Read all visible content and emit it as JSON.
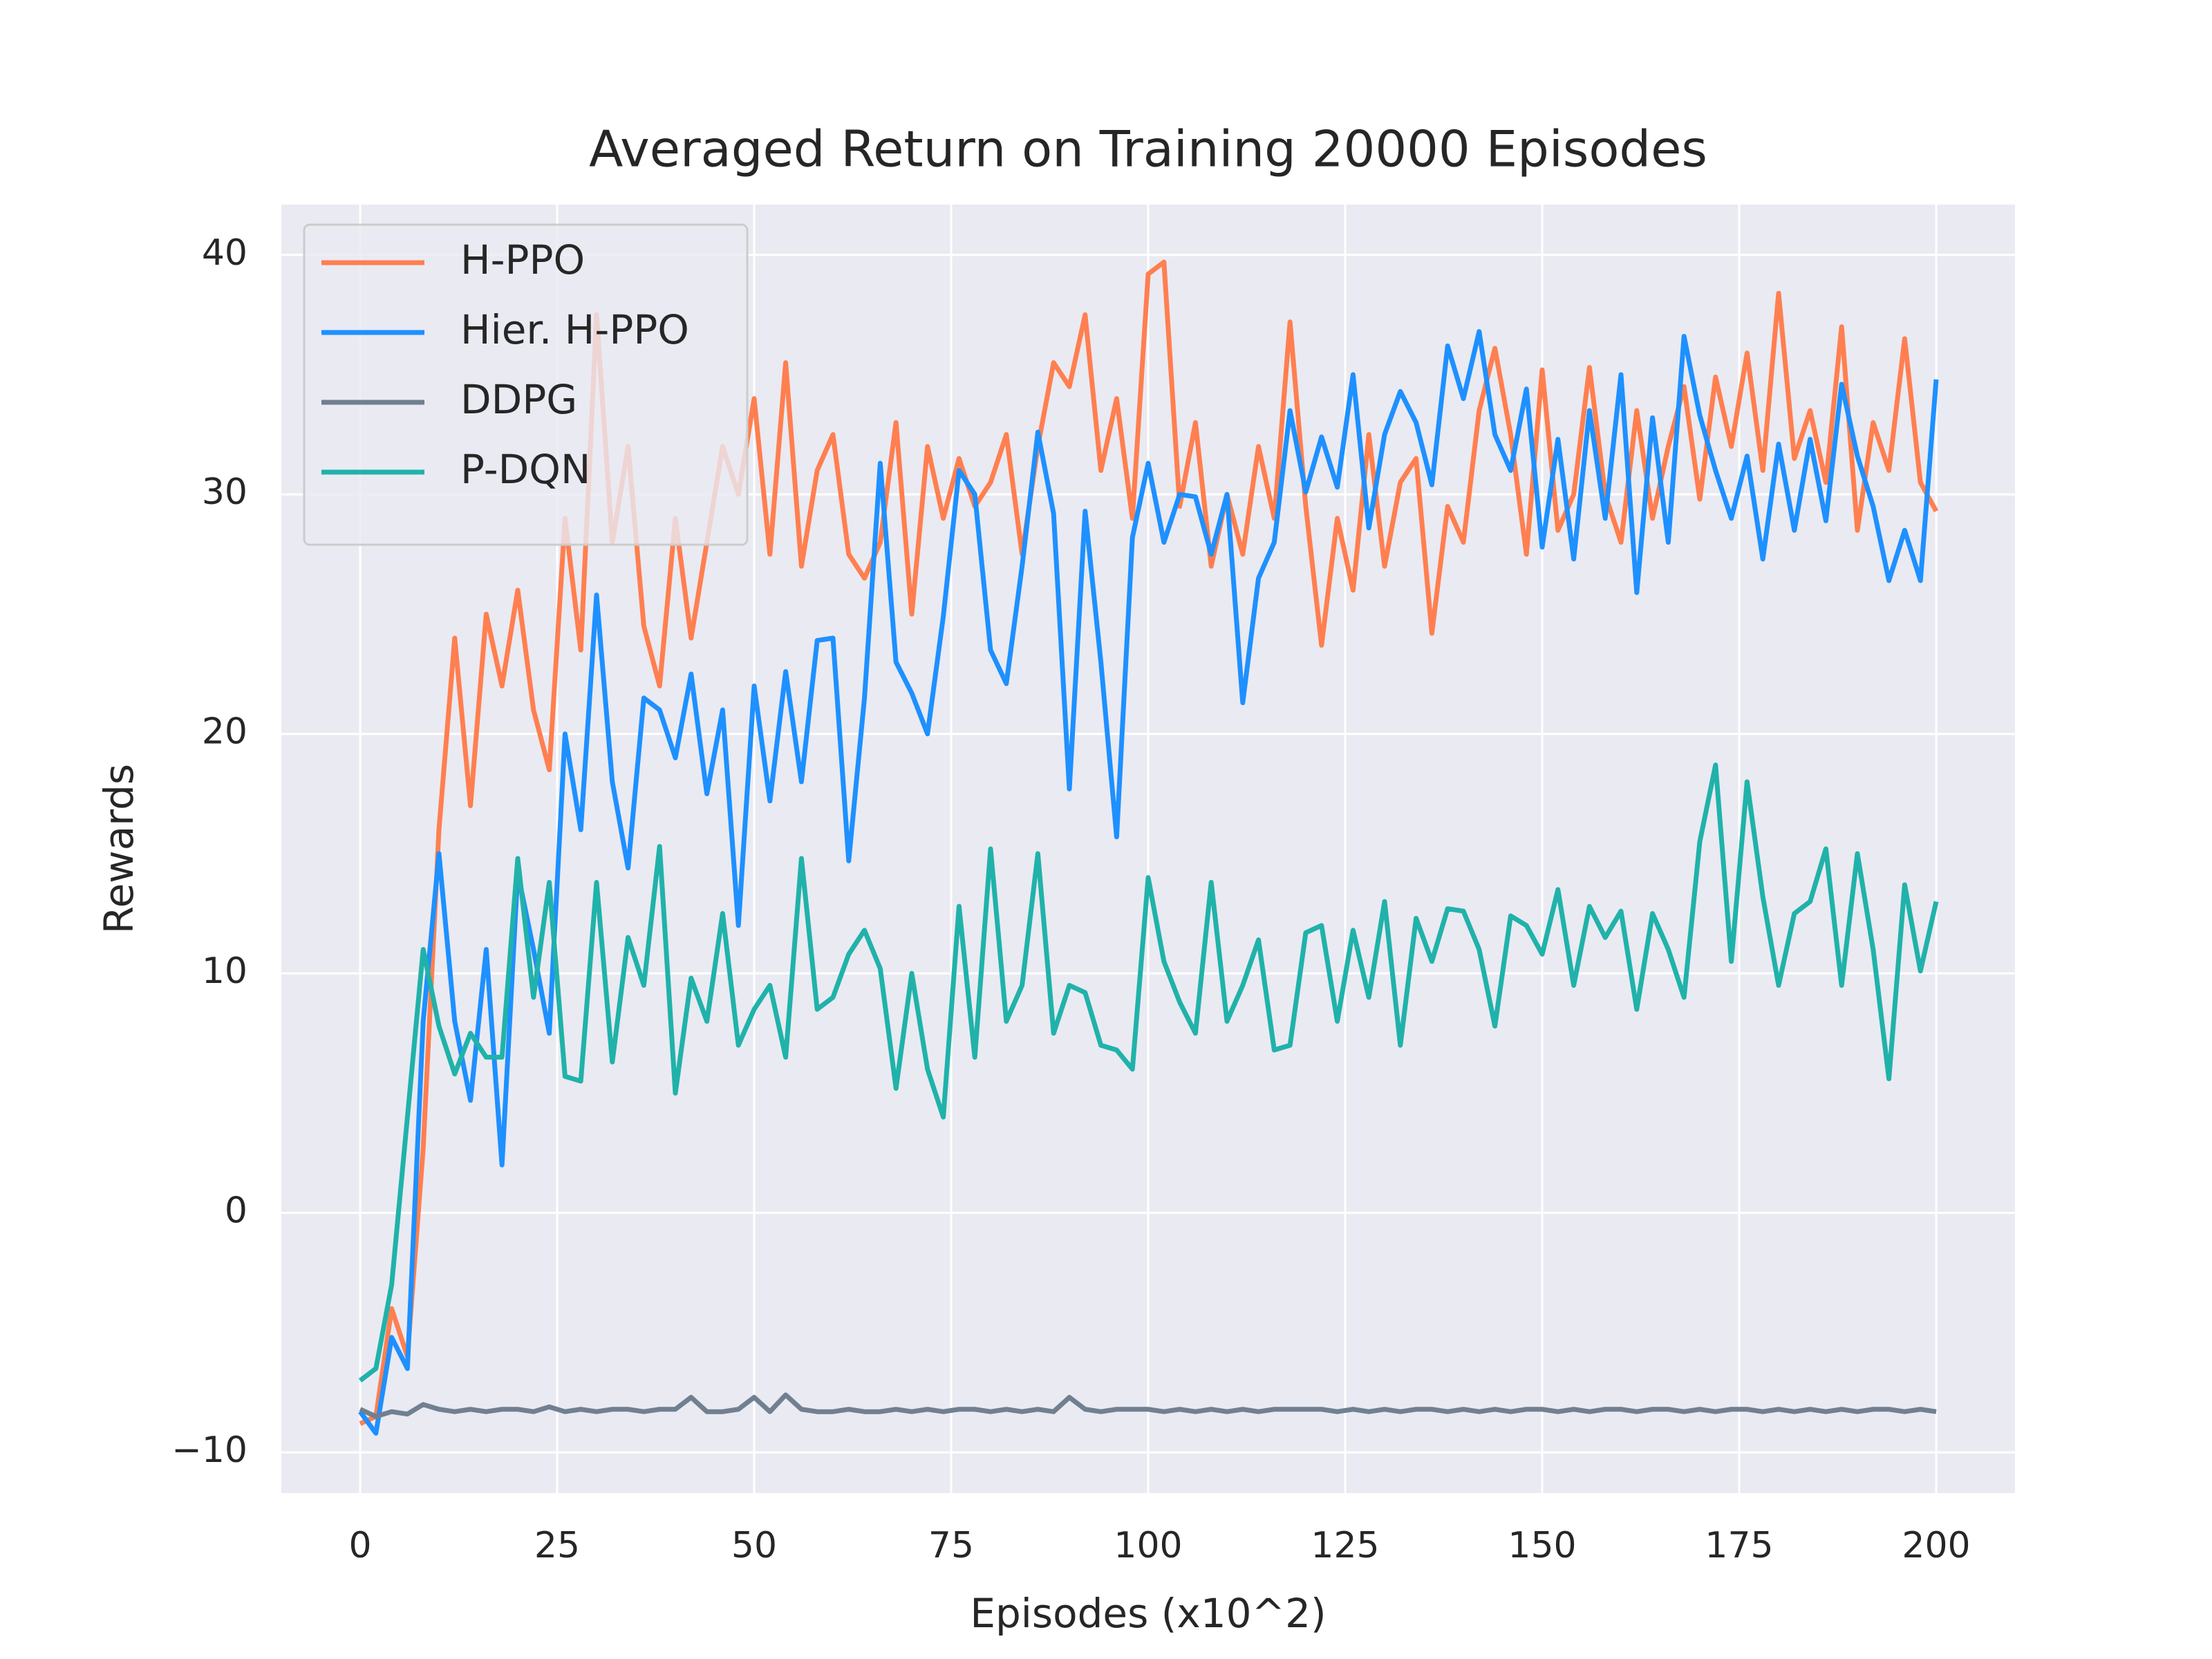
{
  "chart_data": {
    "type": "line",
    "title": "Averaged Return on Training 20000 Episodes",
    "x_label": "Episodes (x10^2)",
    "y_label": "Rewards",
    "x": [
      0,
      2,
      4,
      6,
      8,
      10,
      12,
      14,
      16,
      18,
      20,
      22,
      24,
      26,
      28,
      30,
      32,
      34,
      36,
      38,
      40,
      42,
      44,
      46,
      48,
      50,
      52,
      54,
      56,
      58,
      60,
      62,
      64,
      66,
      68,
      70,
      72,
      74,
      76,
      78,
      80,
      82,
      84,
      86,
      88,
      90,
      92,
      94,
      96,
      98,
      100,
      102,
      104,
      106,
      108,
      110,
      112,
      114,
      116,
      118,
      120,
      122,
      124,
      126,
      128,
      130,
      132,
      134,
      136,
      138,
      140,
      142,
      144,
      146,
      148,
      150,
      152,
      154,
      156,
      158,
      160,
      162,
      164,
      166,
      168,
      170,
      172,
      174,
      176,
      178,
      180,
      182,
      184,
      186,
      188,
      190,
      192,
      194,
      196,
      198,
      200
    ],
    "series": [
      {
        "name": "H-PPO",
        "color": "#ff7f50",
        "values": [
          -8.8,
          -8.5,
          -4,
          -6,
          2.7,
          16,
          24,
          17,
          25,
          22,
          26,
          21,
          18.5,
          29,
          23.5,
          37.5,
          28,
          32,
          24.5,
          22,
          29,
          24,
          28,
          32,
          30,
          34,
          27.5,
          35.5,
          27,
          31,
          32.5,
          27.5,
          26.5,
          28,
          33,
          25,
          32,
          29,
          31.5,
          29.5,
          30.5,
          32.5,
          27.5,
          32,
          35.5,
          34.5,
          37.5,
          31,
          34,
          29,
          39.2,
          39.7,
          29.5,
          33,
          27,
          30,
          27.5,
          32,
          29,
          37.2,
          29.5,
          23.7,
          29,
          26,
          32.5,
          27,
          30.5,
          31.5,
          24.2,
          29.5,
          28,
          33.5,
          36.1,
          32.5,
          27.5,
          35.2,
          28.5,
          30,
          35.3,
          30,
          28,
          33.5,
          29,
          32,
          34.5,
          29.8,
          34.9,
          32,
          35.9,
          31,
          38.4,
          31.5,
          33.5,
          30.5,
          37,
          28.5,
          33,
          31,
          36.5,
          30.5,
          29.3
        ]
      },
      {
        "name": "Hier. H-PPO",
        "color": "#1e90ff",
        "values": [
          -8.3,
          -9.2,
          -5.2,
          -6.5,
          8,
          15,
          8,
          4.7,
          11,
          2,
          14.2,
          11,
          7.5,
          20,
          16,
          25.8,
          18,
          14.4,
          21.5,
          21,
          19,
          22.5,
          17.5,
          21,
          12,
          22,
          17.2,
          22.6,
          18,
          23.9,
          24,
          14.7,
          21.5,
          31.3,
          23,
          21.7,
          20,
          24.9,
          31,
          30,
          23.5,
          22.1,
          27,
          32.6,
          29.2,
          17.7,
          29.3,
          23,
          15.7,
          28.2,
          31.3,
          28,
          30,
          29.9,
          27.5,
          30,
          21.3,
          26.5,
          28,
          33.5,
          30.1,
          32.4,
          30.3,
          35,
          28.6,
          32.5,
          34.3,
          33,
          30.4,
          36.2,
          34,
          36.8,
          32.5,
          31,
          34.4,
          27.8,
          32.3,
          27.3,
          33.5,
          29,
          35,
          25.9,
          33.2,
          28,
          36.6,
          33.3,
          31,
          29,
          31.6,
          27.3,
          32.1,
          28.5,
          32.3,
          28.9,
          34.6,
          31.6,
          29.5,
          26.4,
          28.5,
          26.4,
          34.8
        ]
      },
      {
        "name": "DDPG",
        "color": "#708090",
        "values": [
          -8.2,
          -8.5,
          -8.3,
          -8.4,
          -8,
          -8.2,
          -8.3,
          -8.2,
          -8.3,
          -8.2,
          -8.2,
          -8.3,
          -8.1,
          -8.3,
          -8.2,
          -8.3,
          -8.2,
          -8.2,
          -8.3,
          -8.2,
          -8.2,
          -7.7,
          -8.3,
          -8.3,
          -8.2,
          -7.7,
          -8.3,
          -7.6,
          -8.2,
          -8.3,
          -8.3,
          -8.2,
          -8.3,
          -8.3,
          -8.2,
          -8.3,
          -8.2,
          -8.3,
          -8.2,
          -8.2,
          -8.3,
          -8.2,
          -8.3,
          -8.2,
          -8.3,
          -7.7,
          -8.2,
          -8.3,
          -8.2,
          -8.2,
          -8.2,
          -8.3,
          -8.2,
          -8.3,
          -8.2,
          -8.3,
          -8.2,
          -8.3,
          -8.2,
          -8.2,
          -8.2,
          -8.2,
          -8.3,
          -8.2,
          -8.3,
          -8.2,
          -8.3,
          -8.2,
          -8.2,
          -8.3,
          -8.2,
          -8.3,
          -8.2,
          -8.3,
          -8.2,
          -8.2,
          -8.3,
          -8.2,
          -8.3,
          -8.2,
          -8.2,
          -8.3,
          -8.2,
          -8.2,
          -8.3,
          -8.2,
          -8.3,
          -8.2,
          -8.2,
          -8.3,
          -8.2,
          -8.3,
          -8.2,
          -8.3,
          -8.2,
          -8.3,
          -8.2,
          -8.2,
          -8.3,
          -8.2,
          -8.3
        ]
      },
      {
        "name": "P-DQN",
        "color": "#20b2aa",
        "values": [
          -7,
          -6.5,
          -3,
          4,
          11,
          7.8,
          5.8,
          7.5,
          6.5,
          6.5,
          14.8,
          9,
          13.8,
          5.7,
          5.5,
          13.8,
          6.3,
          11.5,
          9.5,
          15.3,
          5,
          9.8,
          8,
          12.5,
          7,
          8.5,
          9.5,
          6.5,
          14.8,
          8.5,
          9,
          10.8,
          11.8,
          10.2,
          5.2,
          10,
          6,
          4,
          12.8,
          6.5,
          15.2,
          8,
          9.5,
          15,
          7.5,
          9.5,
          9.2,
          7,
          6.8,
          6,
          14,
          10.5,
          8.8,
          7.5,
          13.8,
          8,
          9.5,
          11.4,
          6.8,
          7,
          11.7,
          12,
          8,
          11.8,
          9,
          13,
          7,
          12.3,
          10.5,
          12.7,
          12.6,
          11,
          7.8,
          12.4,
          12,
          10.8,
          13.5,
          9.5,
          12.8,
          11.5,
          12.6,
          8.5,
          12.5,
          11,
          9,
          15.5,
          18.7,
          10.5,
          18,
          13.2,
          9.5,
          12.5,
          13,
          15.2,
          9.5,
          15,
          11,
          5.6,
          13.7,
          10.1,
          13
        ]
      }
    ],
    "xlim": [
      -10,
      210
    ],
    "ylim": [
      -11.7,
      42.1
    ],
    "xticks": [
      0,
      25,
      50,
      75,
      100,
      125,
      150,
      175,
      200
    ],
    "yticks": [
      {
        "value": -10,
        "label": "−10"
      },
      0,
      10,
      20,
      30,
      40
    ],
    "grid": true,
    "legend": "upper left"
  }
}
